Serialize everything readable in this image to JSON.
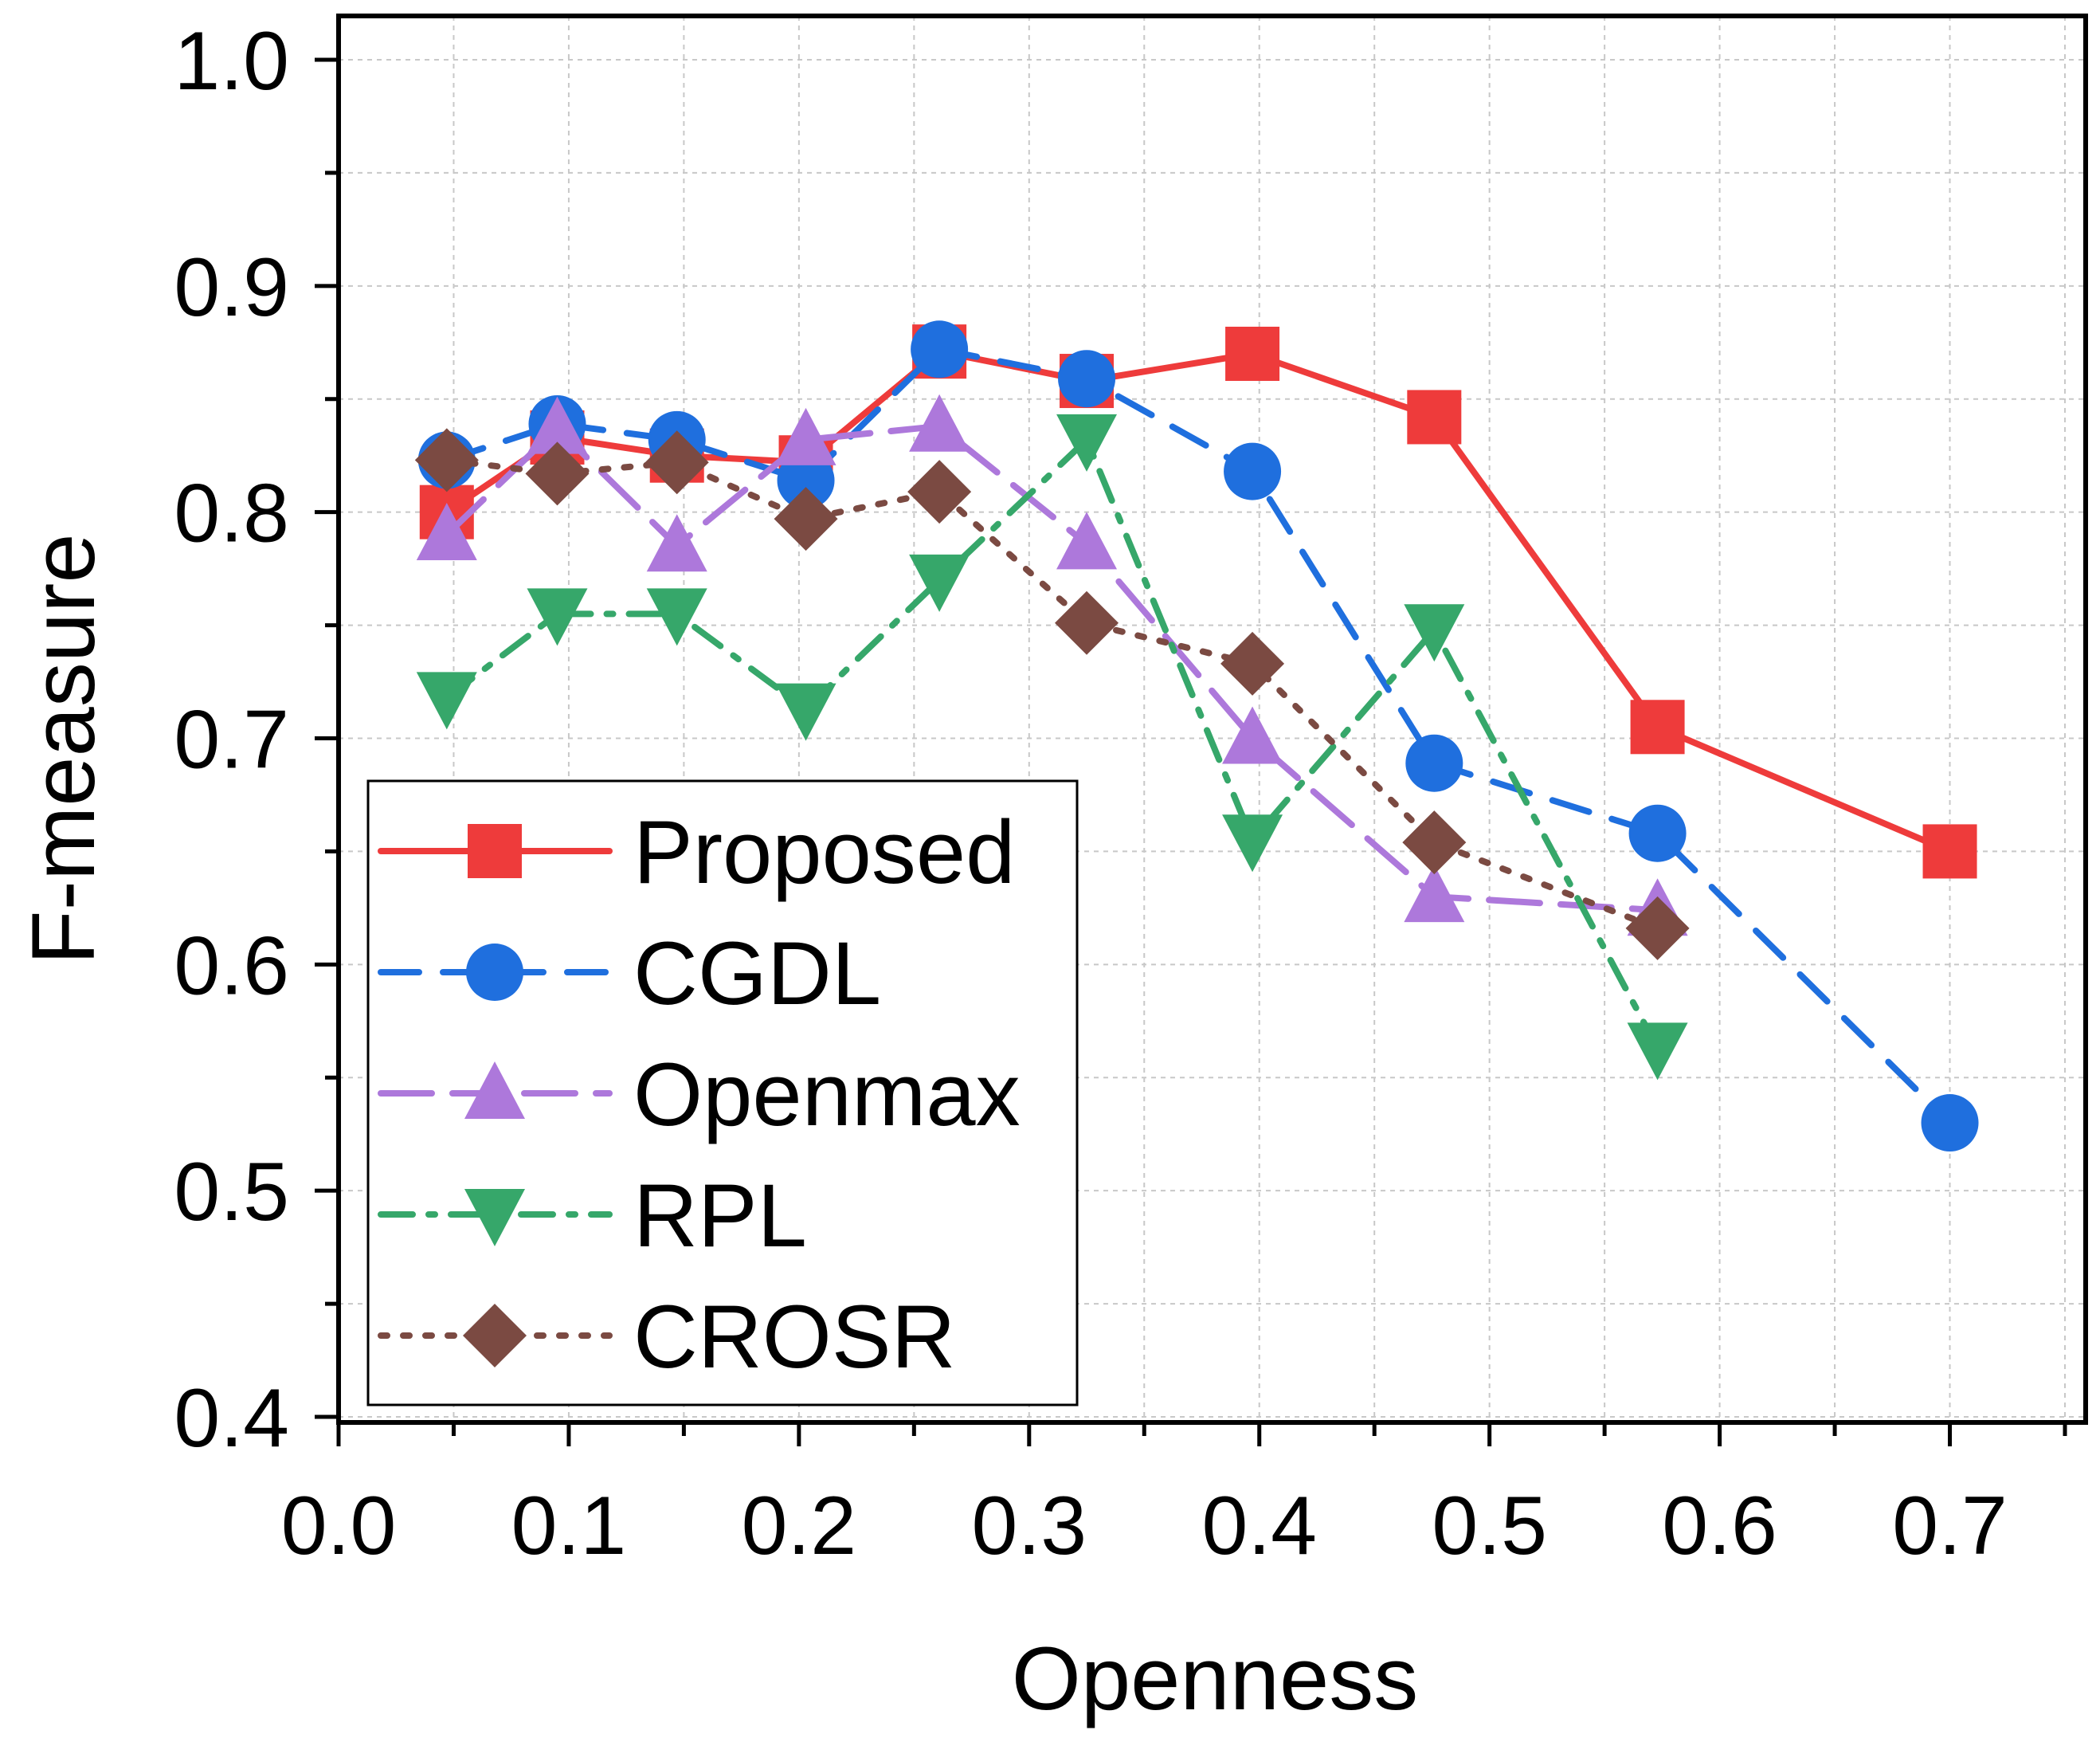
{
  "chart_data": {
    "type": "line",
    "title": "",
    "xlabel": "Openness",
    "ylabel": "F-measure",
    "xlim": [
      0.0,
      0.75
    ],
    "ylim": [
      0.4,
      1.0
    ],
    "xticks": [
      0.0,
      0.1,
      0.2,
      0.3,
      0.4,
      0.5,
      0.6,
      0.7
    ],
    "xtick_labels": [
      "0.0",
      "0.1",
      "0.2",
      "0.3",
      "0.4",
      "0.5",
      "0.6",
      "0.7"
    ],
    "yticks": [
      0.4,
      0.5,
      0.6,
      0.7,
      0.8,
      0.9,
      1.0
    ],
    "ytick_labels": [
      "0.4",
      "0.5",
      "0.6",
      "0.7",
      "0.8",
      "0.9",
      "1.0"
    ],
    "grid": true,
    "legend_position": "bottom-left",
    "series": [
      {
        "name": "Proposed",
        "color": "#ee3b3b",
        "marker": "square",
        "line_style": "solid",
        "x": [
          0.047,
          0.095,
          0.147,
          0.203,
          0.261,
          0.325,
          0.397,
          0.476,
          0.573,
          0.7
        ],
        "y": [
          0.8,
          0.833,
          0.825,
          0.822,
          0.871,
          0.858,
          0.87,
          0.842,
          0.705,
          0.65
        ]
      },
      {
        "name": "CGDL",
        "color": "#1f6fde",
        "marker": "circle",
        "line_style": "dash",
        "x": [
          0.047,
          0.095,
          0.147,
          0.203,
          0.261,
          0.325,
          0.397,
          0.476,
          0.573,
          0.7
        ],
        "y": [
          0.823,
          0.839,
          0.832,
          0.814,
          0.872,
          0.859,
          0.818,
          0.689,
          0.658,
          0.53
        ]
      },
      {
        "name": "Openmax",
        "color": "#ad78db",
        "marker": "triangle-up",
        "line_style": "longdash",
        "x": [
          0.047,
          0.095,
          0.147,
          0.203,
          0.261,
          0.325,
          0.397,
          0.476,
          0.573
        ],
        "y": [
          0.79,
          0.837,
          0.785,
          0.832,
          0.838,
          0.786,
          0.7,
          0.63,
          0.624
        ]
      },
      {
        "name": "RPL",
        "color": "#36a76a",
        "marker": "triangle-down",
        "line_style": "dashdot",
        "x": [
          0.047,
          0.095,
          0.147,
          0.203,
          0.261,
          0.325,
          0.397,
          0.476,
          0.573
        ],
        "y": [
          0.718,
          0.755,
          0.755,
          0.713,
          0.77,
          0.832,
          0.655,
          0.748,
          0.563
        ]
      },
      {
        "name": "CROSR",
        "color": "#7b4a42",
        "marker": "diamond",
        "line_style": "dot",
        "x": [
          0.047,
          0.095,
          0.147,
          0.203,
          0.261,
          0.325,
          0.397,
          0.476,
          0.573
        ],
        "y": [
          0.823,
          0.817,
          0.822,
          0.797,
          0.809,
          0.751,
          0.733,
          0.654,
          0.616
        ]
      }
    ]
  }
}
